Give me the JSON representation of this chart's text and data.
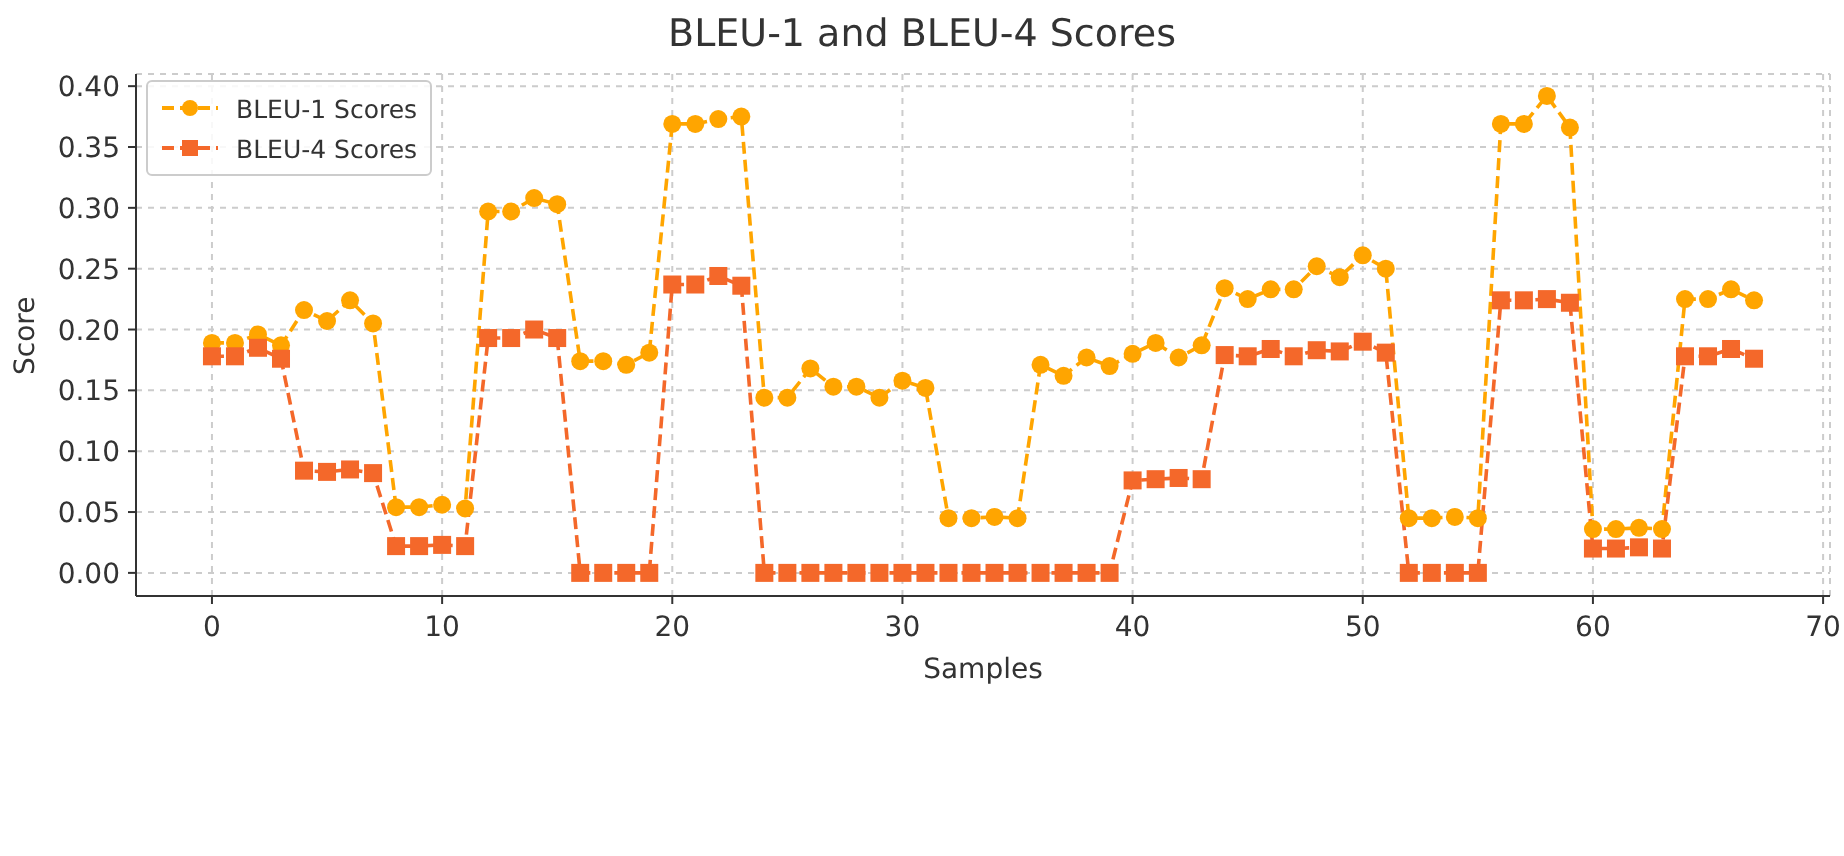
{
  "chart_data": {
    "type": "line",
    "title": "BLEU-1 and BLEU-4 Scores",
    "xlabel": "Samples",
    "ylabel": "Score",
    "x": [
      0,
      1,
      2,
      3,
      4,
      5,
      6,
      7,
      8,
      9,
      10,
      11,
      12,
      13,
      14,
      15,
      16,
      17,
      18,
      19,
      20,
      21,
      22,
      23,
      24,
      25,
      26,
      27,
      28,
      29,
      30,
      31,
      32,
      33,
      34,
      35,
      36,
      37,
      38,
      39,
      40,
      41,
      42,
      43,
      44,
      45,
      46,
      47,
      48,
      49,
      50,
      51,
      52,
      53,
      54,
      55,
      56,
      57,
      58,
      59,
      60,
      61,
      62,
      63,
      64,
      65,
      66,
      67
    ],
    "series": [
      {
        "name": "BLEU-1 Scores",
        "color": "#ffa500",
        "marker": "circle",
        "values": [
          0.189,
          0.189,
          0.196,
          0.187,
          0.216,
          0.207,
          0.224,
          0.205,
          0.054,
          0.054,
          0.056,
          0.053,
          0.297,
          0.297,
          0.308,
          0.303,
          0.174,
          0.174,
          0.171,
          0.181,
          0.369,
          0.369,
          0.373,
          0.375,
          0.144,
          0.144,
          0.168,
          0.153,
          0.153,
          0.144,
          0.158,
          0.152,
          0.045,
          0.045,
          0.046,
          0.045,
          0.171,
          0.162,
          0.177,
          0.17,
          0.18,
          0.189,
          0.177,
          0.187,
          0.234,
          0.225,
          0.233,
          0.233,
          0.252,
          0.243,
          0.261,
          0.25,
          0.045,
          0.045,
          0.046,
          0.045,
          0.369,
          0.369,
          0.392,
          0.366,
          0.036,
          0.036,
          0.037,
          0.036,
          0.225,
          0.225,
          0.233,
          0.224
        ]
      },
      {
        "name": "BLEU-4 Scores",
        "color": "#f4682a",
        "marker": "square",
        "values": [
          0.178,
          0.178,
          0.185,
          0.176,
          0.084,
          0.083,
          0.085,
          0.082,
          0.022,
          0.022,
          0.023,
          0.022,
          0.193,
          0.193,
          0.2,
          0.193,
          0,
          0,
          0,
          0,
          0.237,
          0.237,
          0.244,
          0.236,
          0,
          0,
          0,
          0,
          0,
          0,
          0,
          0,
          0,
          0,
          0,
          0,
          0,
          0,
          0,
          0,
          0.076,
          0.077,
          0.078,
          0.077,
          0.179,
          0.178,
          0.184,
          0.178,
          0.183,
          0.182,
          0.19,
          0.181,
          0,
          0,
          0,
          0,
          0.224,
          0.224,
          0.225,
          0.222,
          0.02,
          0.02,
          0.021,
          0.02,
          0.178,
          0.178,
          0.184,
          0.176
        ]
      }
    ],
    "xlim": [
      -3.3,
      70.3
    ],
    "xticks": [
      0,
      10,
      20,
      30,
      40,
      50,
      60,
      70
    ],
    "ylim": [
      -0.019,
      0.41
    ],
    "yticks": [
      {
        "value": 0,
        "label": "0.00"
      },
      {
        "value": 0.05,
        "label": "0.05"
      },
      {
        "value": 0.1,
        "label": "0.10"
      },
      {
        "value": 0.15,
        "label": "0.15"
      },
      {
        "value": 0.2,
        "label": "0.20"
      },
      {
        "value": 0.25,
        "label": "0.25"
      },
      {
        "value": 0.3,
        "label": "0.30"
      },
      {
        "value": 0.35,
        "label": "0.35"
      },
      {
        "value": 0.4,
        "label": "0.40"
      }
    ],
    "grid": true,
    "legend": "top left",
    "line_style": "dashed"
  }
}
